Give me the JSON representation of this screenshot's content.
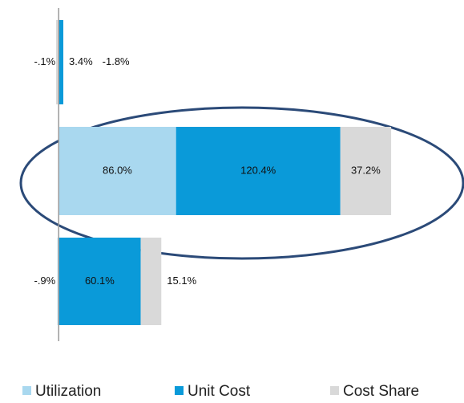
{
  "chart_data": {
    "type": "bar",
    "orientation": "horizontal",
    "stacked": true,
    "categories": [
      null,
      null,
      null
    ],
    "series": [
      {
        "name": "Utilization",
        "color": "#a9d8ef",
        "values": [
          -0.1,
          86.0,
          -0.9
        ],
        "value_labels": [
          "-.1%",
          "86.0%",
          "-.9%"
        ]
      },
      {
        "name": "Unit Cost",
        "color": "#0a9ad9",
        "values": [
          3.4,
          120.4,
          60.1
        ],
        "value_labels": [
          "3.4%",
          "120.4%",
          "60.1%"
        ]
      },
      {
        "name": "Cost Share",
        "color": "#d9d9d9",
        "values": [
          -1.8,
          37.2,
          15.1
        ],
        "value_labels": [
          "-1.8%",
          "37.2%",
          "15.1%"
        ]
      }
    ],
    "xlim": [
      -43,
      297
    ],
    "legend": "bottom"
  }
}
